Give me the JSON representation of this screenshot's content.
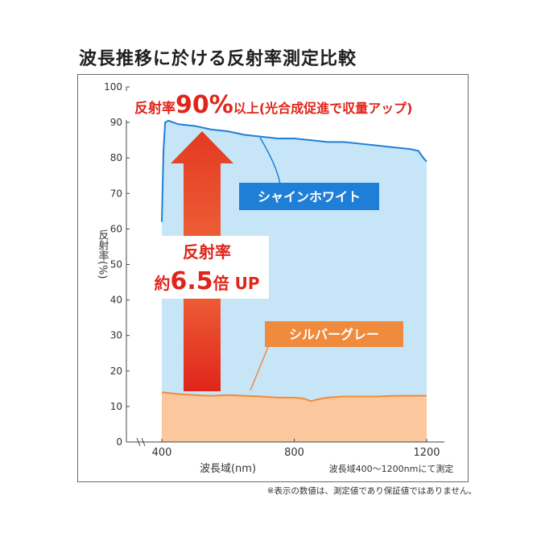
{
  "title": "波長推移に於ける反射率測定比較",
  "footnote": "※表示の数値は、測定値であり保証値ではありません。",
  "chart_data": {
    "type": "line",
    "xlabel": "波長域(nm)",
    "ylabel": "反射率(%)",
    "x_note": "波長域400〜1200nmにて測定",
    "xlim": [
      400,
      1200
    ],
    "ylim": [
      0,
      100
    ],
    "x_ticks": [
      "400",
      "800",
      "1200"
    ],
    "y_ticks": [
      "0",
      "10",
      "20",
      "30",
      "40",
      "50",
      "60",
      "70",
      "80",
      "90",
      "100"
    ],
    "grid": false,
    "series": [
      {
        "name": "シャインホワイト",
        "color": "#1f7fd6",
        "fill": "#c6e6f8",
        "points": [
          [
            400,
            62
          ],
          [
            405,
            82
          ],
          [
            410,
            90
          ],
          [
            420,
            90.5
          ],
          [
            450,
            89.5
          ],
          [
            500,
            89
          ],
          [
            550,
            88
          ],
          [
            600,
            87.5
          ],
          [
            650,
            86.5
          ],
          [
            700,
            86
          ],
          [
            750,
            85.5
          ],
          [
            800,
            85.5
          ],
          [
            850,
            85
          ],
          [
            900,
            84.5
          ],
          [
            950,
            84.5
          ],
          [
            1000,
            84
          ],
          [
            1050,
            83.5
          ],
          [
            1100,
            83
          ],
          [
            1150,
            82.5
          ],
          [
            1175,
            82
          ],
          [
            1190,
            80
          ],
          [
            1200,
            79
          ]
        ]
      },
      {
        "name": "シルバーグレー",
        "color": "#f08a3c",
        "fill": "#fbc89e",
        "points": [
          [
            400,
            14
          ],
          [
            450,
            13.5
          ],
          [
            500,
            13.2
          ],
          [
            550,
            13
          ],
          [
            600,
            13.2
          ],
          [
            650,
            13
          ],
          [
            700,
            12.8
          ],
          [
            750,
            12.5
          ],
          [
            800,
            12.5
          ],
          [
            830,
            12.2
          ],
          [
            850,
            11.5
          ],
          [
            870,
            12
          ],
          [
            900,
            12.5
          ],
          [
            950,
            12.8
          ],
          [
            1000,
            12.8
          ],
          [
            1050,
            12.8
          ],
          [
            1100,
            13
          ],
          [
            1150,
            13
          ],
          [
            1200,
            13
          ]
        ]
      }
    ],
    "annotations": {
      "headline_prefix": "反射率",
      "headline_value": "90%",
      "headline_suffix": "以上(光合成促進で収量アップ)",
      "arrow_line1": "反射率",
      "arrow_line2_prefix": "約",
      "arrow_line2_value": "6.5",
      "arrow_line2_suffix": "倍 UP"
    }
  }
}
